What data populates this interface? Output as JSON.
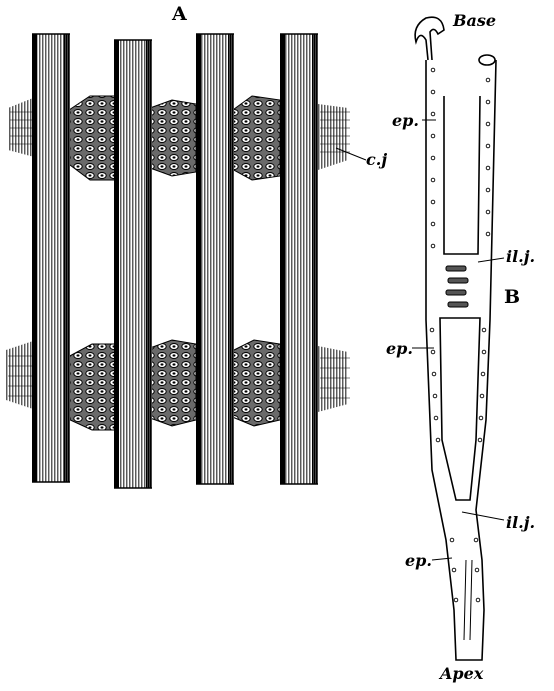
{
  "panel_a": {
    "label": "A",
    "callouts": {
      "cj": "c.j"
    }
  },
  "panel_b": {
    "label": "B",
    "base": "Base",
    "apex": "Apex",
    "callouts": {
      "ep_top": "ep.",
      "ep_mid": "ep.",
      "ep_bot": "ep.",
      "ilj_top": "il.j.",
      "ilj_bot": "il.j."
    }
  },
  "colors": {
    "ink": "#111111",
    "paper": "#ffffff",
    "shade": "#3a3a3a"
  }
}
